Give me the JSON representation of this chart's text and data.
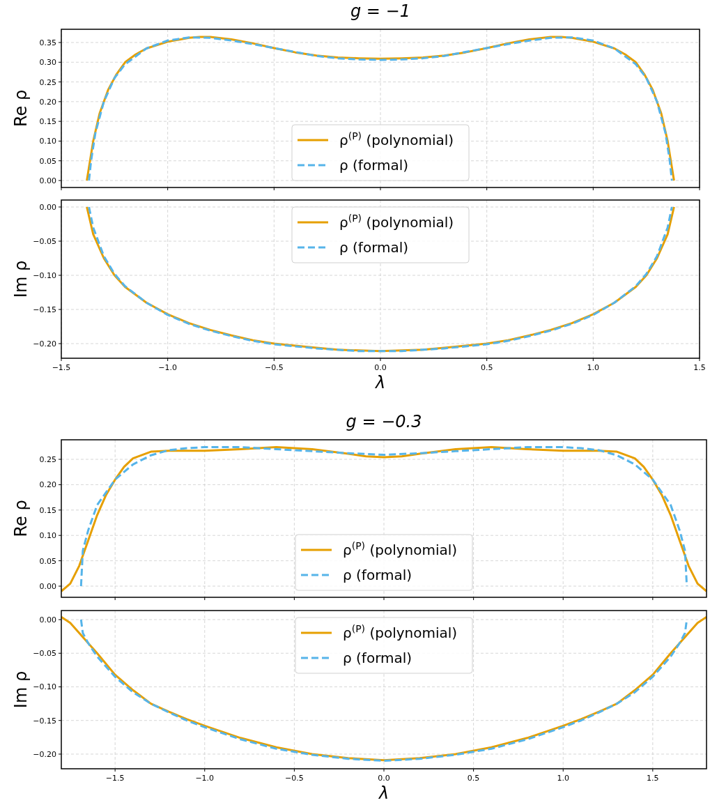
{
  "chart_data": [
    {
      "type": "line",
      "title": "g = −1",
      "ylabel": "Re ρ",
      "xlim": [
        -1.5,
        1.5
      ],
      "ylim": [
        -0.0177,
        0.3836
      ],
      "xticks": [
        {
          "value": -1.5,
          "label": null
        },
        {
          "value": -1,
          "label": null
        },
        {
          "value": -0.5,
          "label": null
        },
        {
          "value": 0,
          "label": null
        },
        {
          "value": 0.5,
          "label": null
        },
        {
          "value": 1,
          "label": null
        },
        {
          "value": 1.5,
          "label": null
        }
      ],
      "yticks": [
        {
          "value": 0,
          "label": "0.00"
        },
        {
          "value": 0.05,
          "label": "0.05"
        },
        {
          "value": 0.1,
          "label": "0.10"
        },
        {
          "value": 0.15,
          "label": "0.15"
        },
        {
          "value": 0.2,
          "label": "0.20"
        },
        {
          "value": 0.25,
          "label": "0.25"
        },
        {
          "value": 0.3,
          "label": "0.30"
        },
        {
          "value": 0.35,
          "label": "0.35"
        }
      ],
      "tick_labels": "y",
      "grid": true,
      "legend": "bottom",
      "series": [
        {
          "name": "ρ$^{(P)}$ (polynomial)",
          "color": "#e69f00",
          "line_style": "solid",
          "x": [
            -1.38,
            -1.35,
            -1.32,
            -1.28,
            -1.24,
            -1.2,
            -1.15,
            -1.1,
            -1,
            -0.9,
            -0.85,
            -0.8,
            -0.7,
            -0.6,
            -0.5,
            -0.4,
            -0.3,
            -0.2,
            -0.1,
            0,
            0.1,
            0.2,
            0.3,
            0.4,
            0.5,
            0.6,
            0.7,
            0.8,
            0.85,
            0.9,
            1,
            1.1,
            1.15,
            1.2,
            1.24,
            1.28,
            1.32,
            1.35,
            1.38
          ],
          "values": [
            0,
            0.1,
            0.17,
            0.23,
            0.27,
            0.3,
            0.32,
            0.335,
            0.352,
            0.362,
            0.364,
            0.364,
            0.358,
            0.348,
            0.336,
            0.325,
            0.317,
            0.312,
            0.31,
            0.309,
            0.31,
            0.312,
            0.317,
            0.325,
            0.336,
            0.348,
            0.358,
            0.364,
            0.364,
            0.362,
            0.352,
            0.335,
            0.32,
            0.3,
            0.27,
            0.23,
            0.17,
            0.1,
            0
          ]
        },
        {
          "name": "ρ (formal)",
          "color": "#56b4e9",
          "line_style": "dashed",
          "x": [
            -1.37,
            -1.36,
            -1.34,
            -1.3,
            -1.25,
            -1.2,
            -1.1,
            -1,
            -0.9,
            -0.8,
            -0.7,
            -0.6,
            -0.5,
            -0.4,
            -0.3,
            -0.2,
            -0.1,
            0,
            0.1,
            0.2,
            0.3,
            0.4,
            0.5,
            0.6,
            0.7,
            0.8,
            0.9,
            1,
            1.1,
            1.2,
            1.25,
            1.3,
            1.34,
            1.36,
            1.37
          ],
          "values": [
            0,
            0.05,
            0.12,
            0.2,
            0.26,
            0.295,
            0.335,
            0.355,
            0.363,
            0.362,
            0.355,
            0.346,
            0.336,
            0.326,
            0.316,
            0.31,
            0.307,
            0.306,
            0.307,
            0.31,
            0.316,
            0.326,
            0.336,
            0.346,
            0.355,
            0.362,
            0.363,
            0.355,
            0.335,
            0.295,
            0.26,
            0.2,
            0.12,
            0.05,
            0
          ]
        }
      ]
    },
    {
      "type": "line",
      "ylabel": "Im ρ",
      "xlabel": "λ",
      "xlim": [
        -1.5,
        1.5
      ],
      "ylim": [
        -0.2214,
        0.0102
      ],
      "xticks": [
        {
          "value": -1.5,
          "label": "−1.5"
        },
        {
          "value": -1,
          "label": "−1.0"
        },
        {
          "value": -0.5,
          "label": "−0.5"
        },
        {
          "value": 0,
          "label": "0.0"
        },
        {
          "value": 0.5,
          "label": "0.5"
        },
        {
          "value": 1,
          "label": "1.0"
        },
        {
          "value": 1.5,
          "label": "1.5"
        }
      ],
      "yticks": [
        {
          "value": -0.2,
          "label": "−0.20"
        },
        {
          "value": -0.15,
          "label": "−0.15"
        },
        {
          "value": -0.1,
          "label": "−0.10"
        },
        {
          "value": -0.05,
          "label": "−0.05"
        },
        {
          "value": 0,
          "label": "0.00"
        }
      ],
      "grid": true,
      "legend": "top",
      "series": [
        {
          "name": "ρ$^{(P)}$ (polynomial)",
          "color": "#e69f00",
          "line_style": "solid",
          "x": [
            -1.38,
            -1.35,
            -1.3,
            -1.25,
            -1.2,
            -1.1,
            -1,
            -0.9,
            -0.8,
            -0.7,
            -0.6,
            -0.5,
            -0.4,
            -0.3,
            -0.2,
            -0.1,
            0,
            0.1,
            0.2,
            0.3,
            0.4,
            0.5,
            0.6,
            0.7,
            0.8,
            0.9,
            1,
            1.1,
            1.2,
            1.25,
            1.3,
            1.35,
            1.38
          ],
          "values": [
            0,
            -0.04,
            -0.075,
            -0.1,
            -0.117,
            -0.14,
            -0.157,
            -0.17,
            -0.18,
            -0.188,
            -0.195,
            -0.2,
            -0.203,
            -0.206,
            -0.209,
            -0.21,
            -0.211,
            -0.21,
            -0.209,
            -0.206,
            -0.203,
            -0.2,
            -0.195,
            -0.188,
            -0.18,
            -0.17,
            -0.157,
            -0.14,
            -0.117,
            -0.1,
            -0.075,
            -0.04,
            0
          ]
        },
        {
          "name": "ρ (formal)",
          "color": "#56b4e9",
          "line_style": "dashed",
          "x": [
            -1.37,
            -1.35,
            -1.3,
            -1.25,
            -1.2,
            -1.1,
            -1,
            -0.9,
            -0.8,
            -0.7,
            -0.6,
            -0.5,
            -0.4,
            -0.3,
            -0.2,
            -0.1,
            0,
            0.1,
            0.2,
            0.3,
            0.4,
            0.5,
            0.6,
            0.7,
            0.8,
            0.9,
            1,
            1.1,
            1.2,
            1.25,
            1.3,
            1.35,
            1.37
          ],
          "values": [
            0,
            -0.03,
            -0.072,
            -0.098,
            -0.116,
            -0.14,
            -0.158,
            -0.171,
            -0.181,
            -0.189,
            -0.196,
            -0.201,
            -0.204,
            -0.207,
            -0.209,
            -0.211,
            -0.211,
            -0.211,
            -0.209,
            -0.207,
            -0.204,
            -0.201,
            -0.196,
            -0.189,
            -0.181,
            -0.171,
            -0.158,
            -0.14,
            -0.116,
            -0.098,
            -0.072,
            -0.03,
            0
          ]
        }
      ]
    },
    {
      "type": "line",
      "title": "g = −0.3",
      "ylabel": "Re ρ",
      "xlim": [
        -1.8,
        1.8
      ],
      "ylim": [
        -0.022,
        0.2885
      ],
      "xticks": [
        {
          "value": -1.5,
          "label": null
        },
        {
          "value": -1,
          "label": null
        },
        {
          "value": -0.5,
          "label": null
        },
        {
          "value": 0,
          "label": null
        },
        {
          "value": 0.5,
          "label": null
        },
        {
          "value": 1,
          "label": null
        },
        {
          "value": 1.5,
          "label": null
        }
      ],
      "yticks": [
        {
          "value": 0,
          "label": "0.00"
        },
        {
          "value": 0.05,
          "label": "0.05"
        },
        {
          "value": 0.1,
          "label": "0.10"
        },
        {
          "value": 0.15,
          "label": "0.15"
        },
        {
          "value": 0.2,
          "label": "0.20"
        },
        {
          "value": 0.25,
          "label": "0.25"
        }
      ],
      "tick_labels": "y",
      "grid": true,
      "legend": "bottom",
      "series": [
        {
          "name": "ρ$^{(P)}$ (polynomial)",
          "color": "#e69f00",
          "line_style": "solid",
          "x": [
            -1.8,
            -1.75,
            -1.7,
            -1.65,
            -1.6,
            -1.55,
            -1.5,
            -1.45,
            -1.4,
            -1.3,
            -1.2,
            -1.1,
            -1,
            -0.8,
            -0.6,
            -0.4,
            -0.2,
            -0.1,
            0,
            0.1,
            0.2,
            0.4,
            0.6,
            0.8,
            1,
            1.1,
            1.2,
            1.3,
            1.4,
            1.45,
            1.5,
            1.55,
            1.6,
            1.65,
            1.7,
            1.75,
            1.8
          ],
          "values": [
            -0.01,
            0.005,
            0.04,
            0.09,
            0.14,
            0.18,
            0.21,
            0.235,
            0.252,
            0.265,
            0.267,
            0.267,
            0.267,
            0.27,
            0.274,
            0.27,
            0.261,
            0.256,
            0.254,
            0.256,
            0.261,
            0.27,
            0.274,
            0.27,
            0.267,
            0.267,
            0.267,
            0.265,
            0.252,
            0.235,
            0.21,
            0.18,
            0.14,
            0.09,
            0.04,
            0.005,
            -0.01
          ]
        },
        {
          "name": "ρ (formal)",
          "color": "#56b4e9",
          "line_style": "dashed",
          "x": [
            -1.69,
            -1.68,
            -1.65,
            -1.6,
            -1.5,
            -1.4,
            -1.3,
            -1.2,
            -1.1,
            -1,
            -0.8,
            -0.6,
            -0.4,
            -0.2,
            0,
            0.2,
            0.4,
            0.6,
            0.8,
            1,
            1.1,
            1.2,
            1.3,
            1.4,
            1.5,
            1.6,
            1.65,
            1.68,
            1.69
          ],
          "values": [
            0,
            0.07,
            0.11,
            0.16,
            0.21,
            0.24,
            0.258,
            0.268,
            0.272,
            0.274,
            0.274,
            0.27,
            0.266,
            0.262,
            0.259,
            0.262,
            0.266,
            0.27,
            0.274,
            0.274,
            0.272,
            0.268,
            0.258,
            0.24,
            0.21,
            0.16,
            0.11,
            0.07,
            0
          ]
        }
      ]
    },
    {
      "type": "line",
      "ylabel": "Im ρ",
      "xlabel": "λ",
      "xlim": [
        -1.8,
        1.8
      ],
      "ylim": [
        -0.2218,
        0.0135
      ],
      "xticks": [
        {
          "value": -1.5,
          "label": "−1.5"
        },
        {
          "value": -1,
          "label": "−1.0"
        },
        {
          "value": -0.5,
          "label": "−0.5"
        },
        {
          "value": 0,
          "label": "0.0"
        },
        {
          "value": 0.5,
          "label": "0.5"
        },
        {
          "value": 1,
          "label": "1.0"
        },
        {
          "value": 1.5,
          "label": "1.5"
        }
      ],
      "yticks": [
        {
          "value": -0.2,
          "label": "−0.20"
        },
        {
          "value": -0.15,
          "label": "−0.15"
        },
        {
          "value": -0.1,
          "label": "−0.10"
        },
        {
          "value": -0.05,
          "label": "−0.05"
        },
        {
          "value": 0,
          "label": "0.00"
        }
      ],
      "grid": true,
      "legend": "top",
      "series": [
        {
          "name": "ρ$^{(P)}$ (polynomial)",
          "color": "#e69f00",
          "line_style": "solid",
          "x": [
            -1.8,
            -1.75,
            -1.7,
            -1.6,
            -1.5,
            -1.4,
            -1.3,
            -1.2,
            -1.1,
            -1,
            -0.8,
            -0.6,
            -0.4,
            -0.2,
            0,
            0.2,
            0.4,
            0.6,
            0.8,
            1,
            1.1,
            1.2,
            1.3,
            1.4,
            1.5,
            1.6,
            1.7,
            1.75,
            1.8
          ],
          "values": [
            0.004,
            -0.005,
            -0.02,
            -0.05,
            -0.082,
            -0.105,
            -0.125,
            -0.137,
            -0.148,
            -0.158,
            -0.176,
            -0.19,
            -0.2,
            -0.206,
            -0.209,
            -0.206,
            -0.2,
            -0.19,
            -0.176,
            -0.158,
            -0.148,
            -0.137,
            -0.125,
            -0.105,
            -0.082,
            -0.05,
            -0.02,
            -0.005,
            0.004
          ]
        },
        {
          "name": "ρ (formal)",
          "color": "#56b4e9",
          "line_style": "dashed",
          "x": [
            -1.69,
            -1.68,
            -1.65,
            -1.6,
            -1.5,
            -1.4,
            -1.3,
            -1.2,
            -1.1,
            -1,
            -0.8,
            -0.6,
            -0.4,
            -0.2,
            0,
            0.2,
            0.4,
            0.6,
            0.8,
            1,
            1.1,
            1.2,
            1.3,
            1.4,
            1.5,
            1.6,
            1.65,
            1.68,
            1.69
          ],
          "values": [
            0,
            -0.02,
            -0.035,
            -0.055,
            -0.085,
            -0.108,
            -0.125,
            -0.138,
            -0.15,
            -0.16,
            -0.178,
            -0.192,
            -0.201,
            -0.207,
            -0.21,
            -0.207,
            -0.201,
            -0.192,
            -0.178,
            -0.16,
            -0.15,
            -0.138,
            -0.125,
            -0.108,
            -0.085,
            -0.055,
            -0.035,
            -0.02,
            0
          ]
        }
      ]
    }
  ]
}
